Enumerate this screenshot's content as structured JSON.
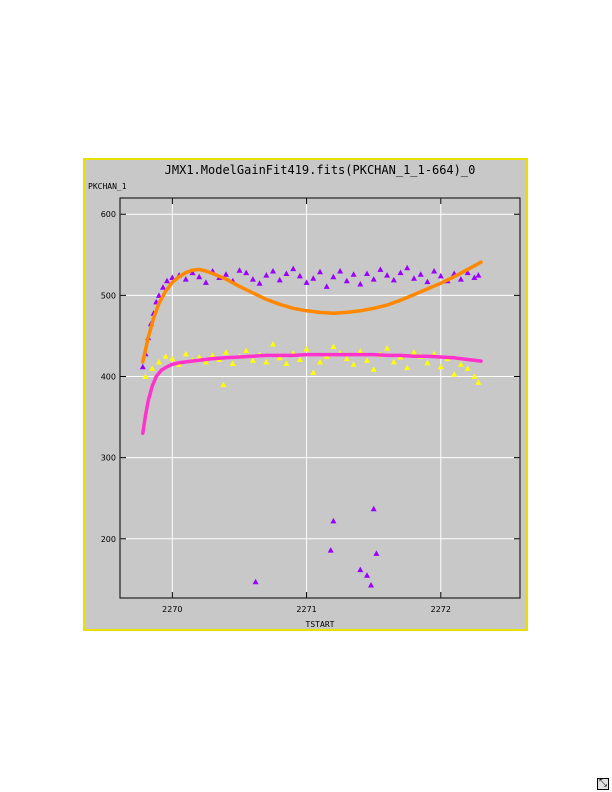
{
  "window": {
    "border_color": "#e8e000",
    "background_color": "#c8c8c8",
    "resize_icon": "resize-handle-icon"
  },
  "chart_data": {
    "type": "scatter",
    "title": "JMX1.ModelGainFit419.fits(PKCHAN_1_1-664)_0",
    "ylabel": "PKCHAN_1",
    "xlabel": "TSTART",
    "xlim": [
      2269.61,
      2272.59
    ],
    "ylim": [
      127,
      620
    ],
    "xticks": [
      2270,
      2271,
      2272
    ],
    "yticks": [
      200,
      300,
      400,
      500,
      600
    ],
    "grid": true,
    "series": [
      {
        "color": "#9900ff",
        "marker": "triangle",
        "x": [
          2269.78,
          2269.8,
          2269.82,
          2269.84,
          2269.86,
          2269.88,
          2269.9,
          2269.93,
          2269.96,
          2270.0,
          2270.05,
          2270.1,
          2270.15,
          2270.2,
          2270.25,
          2270.3,
          2270.35,
          2270.4,
          2270.45,
          2270.5,
          2270.55,
          2270.6,
          2270.65,
          2270.7,
          2270.75,
          2270.8,
          2270.85,
          2270.9,
          2270.95,
          2271.0,
          2271.05,
          2271.1,
          2271.15,
          2271.2,
          2271.25,
          2271.3,
          2271.35,
          2271.4,
          2271.45,
          2271.5,
          2271.55,
          2271.6,
          2271.65,
          2271.7,
          2271.75,
          2271.8,
          2271.85,
          2271.9,
          2271.95,
          2272.0,
          2272.05,
          2272.1,
          2272.15,
          2272.2,
          2272.25,
          2272.28,
          2270.62,
          2271.18,
          2271.2,
          2271.4,
          2271.45,
          2271.48,
          2271.5,
          2271.52
        ],
        "y": [
          412,
          428,
          448,
          465,
          478,
          492,
          500,
          510,
          518,
          522,
          525,
          520,
          528,
          523,
          516,
          530,
          522,
          526,
          518,
          531,
          528,
          520,
          515,
          525,
          530,
          519,
          527,
          533,
          524,
          516,
          521,
          529,
          511,
          523,
          530,
          518,
          526,
          514,
          527,
          520,
          532,
          525,
          519,
          528,
          534,
          521,
          526,
          517,
          530,
          524,
          518,
          527,
          520,
          528,
          522,
          525,
          147,
          186,
          222,
          162,
          155,
          143,
          237,
          182
        ]
      },
      {
        "color": "#ffff00",
        "marker": "triangle",
        "x": [
          2269.8,
          2269.85,
          2269.9,
          2269.95,
          2270.0,
          2270.05,
          2270.1,
          2270.15,
          2270.2,
          2270.25,
          2270.3,
          2270.35,
          2270.38,
          2270.4,
          2270.45,
          2270.5,
          2270.55,
          2270.6,
          2270.65,
          2270.7,
          2270.75,
          2270.8,
          2270.85,
          2270.9,
          2270.95,
          2271.0,
          2271.05,
          2271.1,
          2271.15,
          2271.2,
          2271.25,
          2271.3,
          2271.35,
          2271.4,
          2271.45,
          2271.5,
          2271.55,
          2271.6,
          2271.65,
          2271.7,
          2271.75,
          2271.8,
          2271.85,
          2271.9,
          2271.95,
          2272.0,
          2272.05,
          2272.1,
          2272.15,
          2272.2,
          2272.25,
          2272.28
        ],
        "y": [
          400,
          410,
          418,
          425,
          422,
          415,
          428,
          420,
          424,
          418,
          426,
          421,
          390,
          430,
          416,
          425,
          432,
          420,
          427,
          418,
          440,
          423,
          416,
          429,
          421,
          434,
          405,
          418,
          425,
          437,
          429,
          422,
          415,
          431,
          420,
          409,
          427,
          435,
          418,
          424,
          411,
          430,
          425,
          417,
          428,
          412,
          422,
          403,
          415,
          410,
          400,
          393
        ]
      },
      {
        "color": "#ff8800",
        "marker": "fit-line",
        "x": [
          2269.78,
          2269.82,
          2269.86,
          2269.9,
          2269.95,
          2270.0,
          2270.05,
          2270.1,
          2270.15,
          2270.2,
          2270.25,
          2270.3,
          2270.4,
          2270.5,
          2270.6,
          2270.7,
          2270.8,
          2270.9,
          2271.0,
          2271.1,
          2271.2,
          2271.3,
          2271.4,
          2271.5,
          2271.6,
          2271.7,
          2271.8,
          2271.9,
          2272.0,
          2272.1,
          2272.2,
          2272.3
        ],
        "y": [
          418,
          448,
          472,
          490,
          505,
          516,
          523,
          528,
          531,
          532,
          530,
          527,
          520,
          511,
          503,
          495,
          489,
          484,
          481,
          479,
          478,
          479,
          481,
          484,
          488,
          494,
          501,
          508,
          515,
          523,
          532,
          541
        ]
      },
      {
        "color": "#ff33cc",
        "marker": "fit-line",
        "x": [
          2269.78,
          2269.8,
          2269.82,
          2269.85,
          2269.88,
          2269.92,
          2269.96,
          2270.0,
          2270.05,
          2270.1,
          2270.2,
          2270.3,
          2270.4,
          2270.5,
          2270.6,
          2270.7,
          2270.8,
          2270.9,
          2271.0,
          2271.1,
          2271.2,
          2271.3,
          2271.4,
          2271.5,
          2271.6,
          2271.7,
          2271.8,
          2271.9,
          2272.0,
          2272.1,
          2272.2,
          2272.3
        ],
        "y": [
          330,
          352,
          370,
          388,
          400,
          408,
          412,
          415,
          417,
          418,
          420,
          422,
          423,
          424,
          425,
          426,
          426,
          426,
          427,
          427,
          427,
          427,
          427,
          427,
          426,
          426,
          425,
          425,
          424,
          423,
          421,
          419
        ]
      }
    ]
  }
}
